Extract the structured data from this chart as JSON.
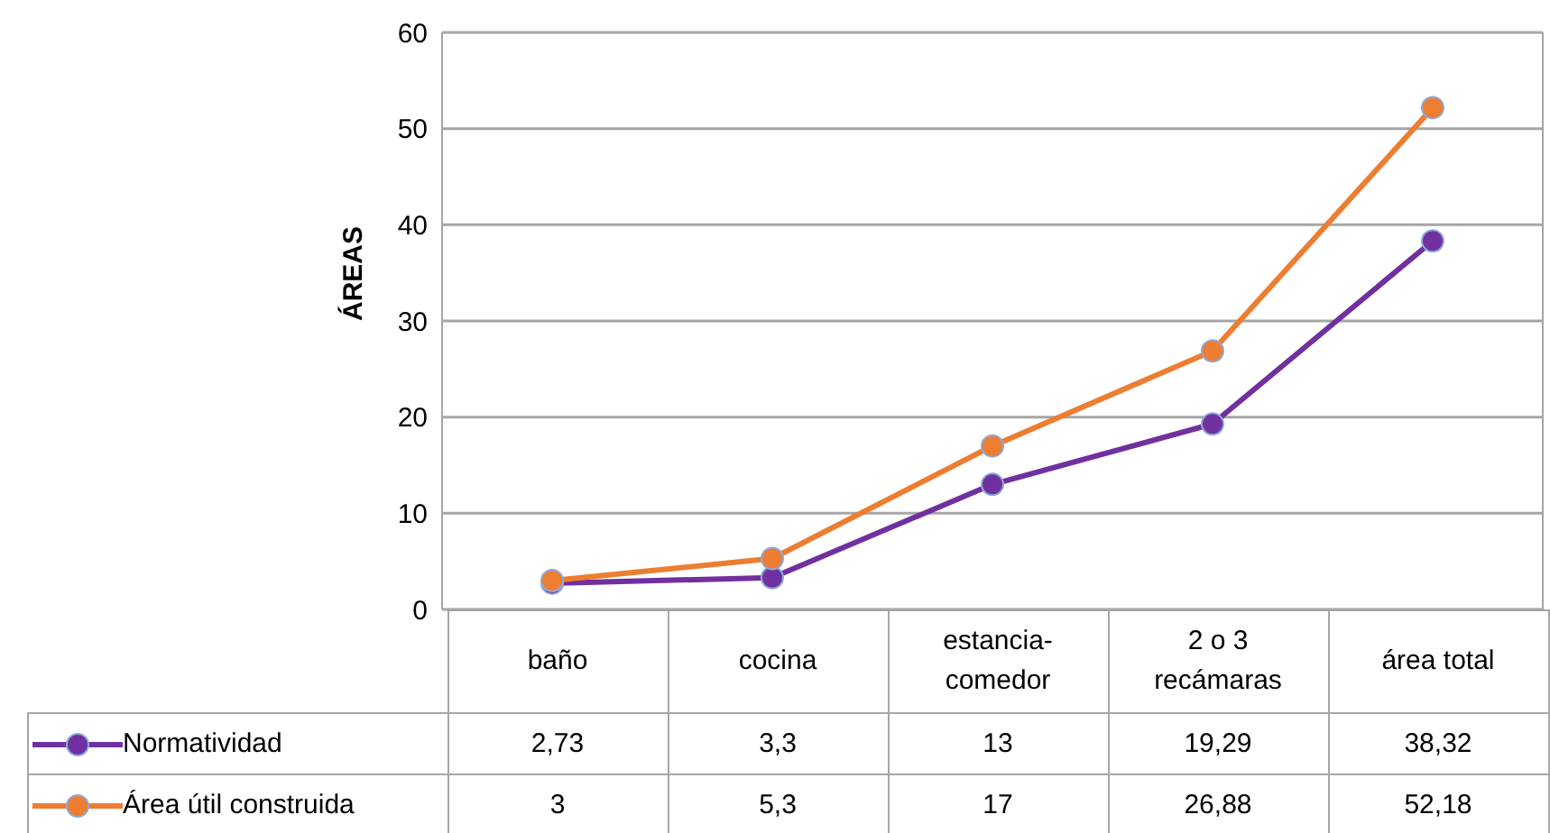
{
  "chart_data": {
    "type": "line",
    "ylabel": "ÁREAS",
    "categories": [
      "baño",
      "cocina",
      "estancia-\ncomedor",
      "2 o 3\nrecámaras",
      "área total"
    ],
    "series": [
      {
        "name": "Normatividad",
        "color": "#7030a0",
        "values": [
          2.73,
          3.3,
          13,
          19.29,
          38.32
        ],
        "value_labels": [
          "2,73",
          "3,3",
          "13",
          "19,29",
          "38,32"
        ]
      },
      {
        "name": "Área útil construida",
        "color": "#ed7d31",
        "values": [
          3,
          5.3,
          17,
          26.88,
          52.18
        ],
        "value_labels": [
          "3",
          "5,3",
          "17",
          "26,88",
          "52,18"
        ]
      }
    ],
    "ylim": [
      0,
      60
    ],
    "yticks": [
      0,
      10,
      20,
      30,
      40,
      50,
      60
    ],
    "grid": "y",
    "marker": "circle",
    "legend": "bottom"
  }
}
